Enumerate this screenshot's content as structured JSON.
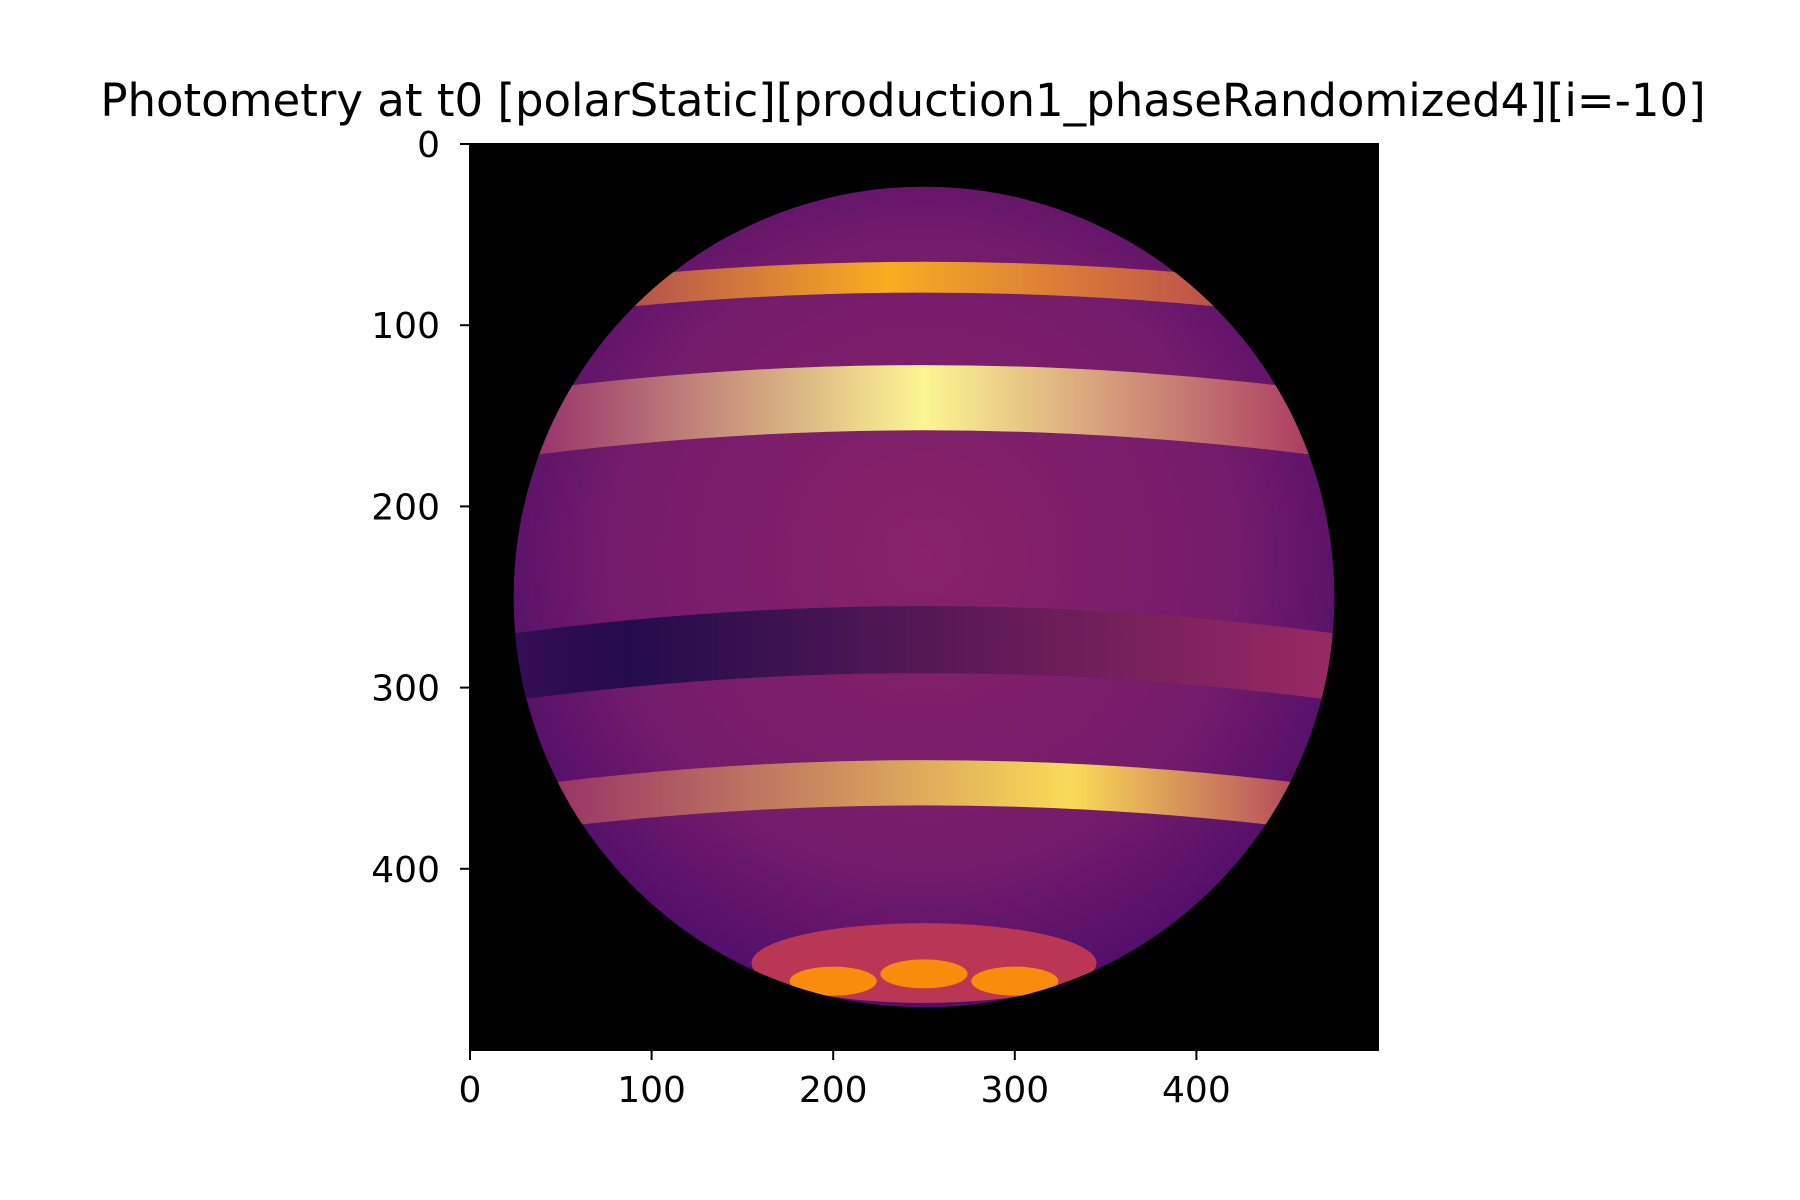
{
  "chart_data": {
    "type": "heatmap",
    "title": "Photometry at t0 [polarStatic][production1_phaseRandomized4][i=-10]",
    "xlabel": "",
    "ylabel": "",
    "image_size": [
      500,
      500
    ],
    "xlim": [
      0,
      500
    ],
    "ylim": [
      500,
      0
    ],
    "x_ticks": [
      0,
      100,
      200,
      300,
      400
    ],
    "y_ticks": [
      0,
      100,
      200,
      300,
      400
    ],
    "x_tick_labels": [
      "0",
      "100",
      "200",
      "300",
      "400"
    ],
    "y_tick_labels": [
      "0",
      "100",
      "200",
      "300",
      "400"
    ],
    "colormap": "inferno",
    "background_color": "#000000",
    "disk": {
      "center_x": 250,
      "center_y": 250,
      "radius": 226
    },
    "bands": [
      {
        "y_top": 65,
        "y_bottom": 82,
        "peak_x": 230,
        "intensity": 0.82
      },
      {
        "y_top": 122,
        "y_bottom": 158,
        "peak_x": 250,
        "intensity": 0.98
      },
      {
        "y_top": 255,
        "y_bottom": 292,
        "peak_x": 90,
        "intensity": 0.14
      },
      {
        "y_top": 340,
        "y_bottom": 365,
        "peak_x": 330,
        "intensity": 0.92
      }
    ],
    "polar_spots": [
      {
        "x": 250,
        "y": 458,
        "intensity": 0.75
      },
      {
        "x": 200,
        "y": 462,
        "intensity": 0.75
      },
      {
        "x": 300,
        "y": 462,
        "intensity": 0.75
      }
    ]
  }
}
